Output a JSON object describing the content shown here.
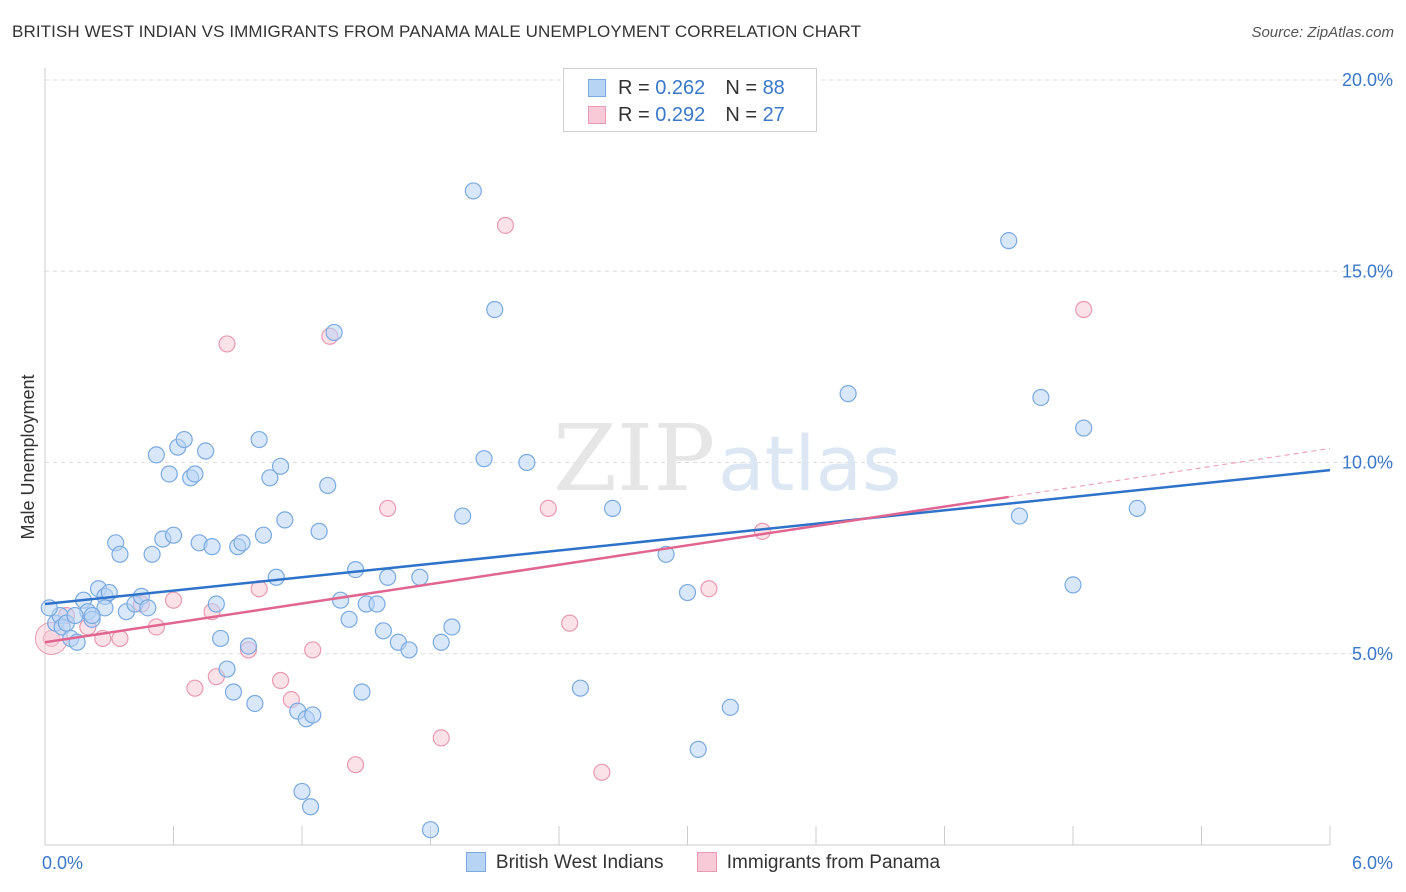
{
  "header": {
    "title": "BRITISH WEST INDIAN VS IMMIGRANTS FROM PANAMA MALE UNEMPLOYMENT CORRELATION CHART",
    "source": "Source: ZipAtlas.com"
  },
  "watermark": {
    "zip": "ZIP",
    "atlas": "atlas"
  },
  "legend": {
    "rows": [
      {
        "r_label": "R = ",
        "r_value": "0.262",
        "n_label": "N = ",
        "n_value": "88"
      },
      {
        "r_label": "R = ",
        "r_value": "0.292",
        "n_label": "N = ",
        "n_value": "27"
      }
    ]
  },
  "colors": {
    "blue_fill": "#b8d4f5",
    "blue_stroke": "#7aaae0",
    "blue_line": "#2e72c9",
    "pink_fill": "#f8c9d6",
    "pink_stroke": "#e89ab0",
    "pink_line": "#e0668f",
    "tick_text": "#3a78c9",
    "grid": "#dddddd"
  },
  "chart_data": {
    "type": "scatter",
    "title": "BRITISH WEST INDIAN VS IMMIGRANTS FROM PANAMA MALE UNEMPLOYMENT CORRELATION CHART",
    "xlabel": "",
    "ylabel": "Male Unemployment",
    "xlim": [
      0,
      6
    ],
    "ylim": [
      0,
      20
    ],
    "x_tick_labels": [
      "0.0%",
      "6.0%"
    ],
    "y_ticks": [
      5,
      10,
      15,
      20
    ],
    "y_tick_labels": [
      "5.0%",
      "10.0%",
      "15.0%",
      "20.0%"
    ],
    "grid": true,
    "legend_position": "top-center",
    "series": [
      {
        "name": "British West Indians",
        "r": 0.262,
        "n": 88,
        "trend": {
          "x": [
            0,
            6
          ],
          "y": [
            6.3,
            9.8
          ]
        },
        "points": [
          [
            0.05,
            5.8
          ],
          [
            0.07,
            6.0
          ],
          [
            0.08,
            5.7
          ],
          [
            0.1,
            5.8
          ],
          [
            0.12,
            5.4
          ],
          [
            0.15,
            5.3
          ],
          [
            0.18,
            6.4
          ],
          [
            0.2,
            6.1
          ],
          [
            0.22,
            5.9
          ],
          [
            0.25,
            6.7
          ],
          [
            0.28,
            6.5
          ],
          [
            0.3,
            6.6
          ],
          [
            0.33,
            7.9
          ],
          [
            0.35,
            7.6
          ],
          [
            0.38,
            6.1
          ],
          [
            0.42,
            6.3
          ],
          [
            0.45,
            6.5
          ],
          [
            0.48,
            6.2
          ],
          [
            0.5,
            7.6
          ],
          [
            0.52,
            10.2
          ],
          [
            0.55,
            8.0
          ],
          [
            0.58,
            9.7
          ],
          [
            0.6,
            8.1
          ],
          [
            0.62,
            10.4
          ],
          [
            0.65,
            10.6
          ],
          [
            0.68,
            9.6
          ],
          [
            0.7,
            9.7
          ],
          [
            0.72,
            7.9
          ],
          [
            0.75,
            10.3
          ],
          [
            0.78,
            7.8
          ],
          [
            0.8,
            6.3
          ],
          [
            0.82,
            5.4
          ],
          [
            0.85,
            4.6
          ],
          [
            0.88,
            4.0
          ],
          [
            0.9,
            7.8
          ],
          [
            0.92,
            7.9
          ],
          [
            0.95,
            5.2
          ],
          [
            0.98,
            3.7
          ],
          [
            1.0,
            10.6
          ],
          [
            1.02,
            8.1
          ],
          [
            1.05,
            9.6
          ],
          [
            1.08,
            7.0
          ],
          [
            1.1,
            9.9
          ],
          [
            1.12,
            8.5
          ],
          [
            1.18,
            3.5
          ],
          [
            1.2,
            1.4
          ],
          [
            1.22,
            3.3
          ],
          [
            1.24,
            1.0
          ],
          [
            1.25,
            3.4
          ],
          [
            1.28,
            8.2
          ],
          [
            1.32,
            9.4
          ],
          [
            1.35,
            13.4
          ],
          [
            1.38,
            6.4
          ],
          [
            1.42,
            5.9
          ],
          [
            1.45,
            7.2
          ],
          [
            1.48,
            4.0
          ],
          [
            1.5,
            6.3
          ],
          [
            1.55,
            6.3
          ],
          [
            1.58,
            5.6
          ],
          [
            1.6,
            7.0
          ],
          [
            1.65,
            5.3
          ],
          [
            1.7,
            5.1
          ],
          [
            1.75,
            7.0
          ],
          [
            1.8,
            0.4
          ],
          [
            1.85,
            5.3
          ],
          [
            1.9,
            5.7
          ],
          [
            1.95,
            8.6
          ],
          [
            2.0,
            17.1
          ],
          [
            2.05,
            10.1
          ],
          [
            2.1,
            14.0
          ],
          [
            2.25,
            10.0
          ],
          [
            2.5,
            4.1
          ],
          [
            2.65,
            8.8
          ],
          [
            2.9,
            7.6
          ],
          [
            3.0,
            6.6
          ],
          [
            3.05,
            2.5
          ],
          [
            3.2,
            3.6
          ],
          [
            3.75,
            11.8
          ],
          [
            4.5,
            15.8
          ],
          [
            4.55,
            8.6
          ],
          [
            4.65,
            11.7
          ],
          [
            4.8,
            6.8
          ],
          [
            4.85,
            10.9
          ],
          [
            5.1,
            8.8
          ],
          [
            0.02,
            6.2
          ],
          [
            0.28,
            6.2
          ],
          [
            0.22,
            6.0
          ],
          [
            0.14,
            6.0
          ]
        ]
      },
      {
        "name": "Immigrants from Panama",
        "r": 0.292,
        "n": 27,
        "trend": {
          "x": [
            0,
            4.5
          ],
          "y": [
            5.3,
            9.1
          ]
        },
        "points": [
          [
            0.03,
            5.4
          ],
          [
            0.1,
            6.0
          ],
          [
            0.2,
            5.7
          ],
          [
            0.27,
            5.4
          ],
          [
            0.35,
            5.4
          ],
          [
            0.45,
            6.3
          ],
          [
            0.52,
            5.7
          ],
          [
            0.6,
            6.4
          ],
          [
            0.7,
            4.1
          ],
          [
            0.78,
            6.1
          ],
          [
            0.8,
            4.4
          ],
          [
            0.85,
            13.1
          ],
          [
            0.95,
            5.1
          ],
          [
            1.0,
            6.7
          ],
          [
            1.1,
            4.3
          ],
          [
            1.15,
            3.8
          ],
          [
            1.25,
            5.1
          ],
          [
            1.33,
            13.3
          ],
          [
            1.45,
            2.1
          ],
          [
            1.6,
            8.8
          ],
          [
            1.85,
            2.8
          ],
          [
            2.15,
            16.2
          ],
          [
            2.35,
            8.8
          ],
          [
            2.45,
            5.8
          ],
          [
            2.6,
            1.9
          ],
          [
            3.1,
            6.7
          ],
          [
            3.35,
            8.2
          ]
        ]
      }
    ],
    "extra_points": [
      [
        4.85,
        14.0
      ]
    ]
  },
  "bottom_legend": {
    "items": [
      {
        "label": "British West Indians"
      },
      {
        "label": "Immigrants from Panama"
      }
    ]
  }
}
